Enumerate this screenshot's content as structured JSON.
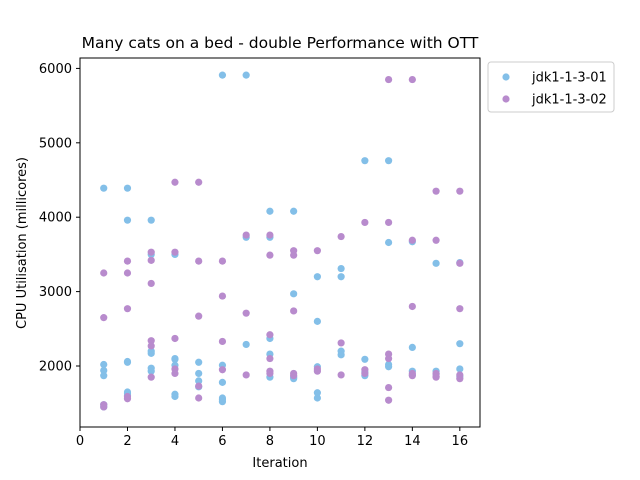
{
  "chart_data": {
    "type": "scatter",
    "title": "Many cats on a bed - double Performance with OTT",
    "xlabel": "Iteration",
    "ylabel": "CPU Utilisation (millicores)",
    "xlim": [
      0,
      16.85
    ],
    "ylim": [
      1180,
      6140
    ],
    "xticks": [
      0,
      2,
      4,
      6,
      8,
      10,
      12,
      14,
      16
    ],
    "yticks": [
      2000,
      3000,
      4000,
      5000,
      6000
    ],
    "legend_position": "upper right outside",
    "series": [
      {
        "name": "jdk1-1-3-01",
        "color": "#83bfe8",
        "points": [
          [
            1,
            4390
          ],
          [
            1,
            2020
          ],
          [
            1,
            1940
          ],
          [
            1,
            1870
          ],
          [
            1,
            1480
          ],
          [
            1,
            1450
          ],
          [
            2,
            4390
          ],
          [
            2,
            3960
          ],
          [
            2,
            2060
          ],
          [
            2,
            2050
          ],
          [
            2,
            1650
          ],
          [
            2,
            1630
          ],
          [
            2,
            1600
          ],
          [
            3,
            3960
          ],
          [
            3,
            3500
          ],
          [
            3,
            2200
          ],
          [
            3,
            2170
          ],
          [
            3,
            1970
          ],
          [
            3,
            1930
          ],
          [
            4,
            3500
          ],
          [
            4,
            2100
          ],
          [
            4,
            2090
          ],
          [
            4,
            2010
          ],
          [
            4,
            1620
          ],
          [
            4,
            1590
          ],
          [
            5,
            2050
          ],
          [
            5,
            1900
          ],
          [
            5,
            1800
          ],
          [
            5,
            1720
          ],
          [
            6,
            5910
          ],
          [
            6,
            2010
          ],
          [
            6,
            1780
          ],
          [
            6,
            1570
          ],
          [
            6,
            1550
          ],
          [
            6,
            1520
          ],
          [
            7,
            5910
          ],
          [
            7,
            3730
          ],
          [
            7,
            2290
          ],
          [
            8,
            4080
          ],
          [
            8,
            3730
          ],
          [
            8,
            2370
          ],
          [
            8,
            2160
          ],
          [
            8,
            1850
          ],
          [
            9,
            4080
          ],
          [
            9,
            2970
          ],
          [
            9,
            1850
          ],
          [
            9,
            1830
          ],
          [
            10,
            3200
          ],
          [
            10,
            2600
          ],
          [
            10,
            1990
          ],
          [
            10,
            1640
          ],
          [
            10,
            1570
          ],
          [
            11,
            3310
          ],
          [
            11,
            3200
          ],
          [
            11,
            2200
          ],
          [
            11,
            2150
          ],
          [
            12,
            4760
          ],
          [
            12,
            2090
          ],
          [
            12,
            1920
          ],
          [
            12,
            1870
          ],
          [
            13,
            4760
          ],
          [
            13,
            3660
          ],
          [
            13,
            2020
          ],
          [
            13,
            1990
          ],
          [
            14,
            3670
          ],
          [
            14,
            2250
          ],
          [
            14,
            1930
          ],
          [
            14,
            1880
          ],
          [
            15,
            3380
          ],
          [
            15,
            1930
          ],
          [
            15,
            1890
          ],
          [
            16,
            3390
          ],
          [
            16,
            2300
          ],
          [
            16,
            1960
          ],
          [
            16,
            1860
          ]
        ]
      },
      {
        "name": "jdk1-1-3-02",
        "color": "#b88bcd",
        "points": [
          [
            1,
            3250
          ],
          [
            1,
            2650
          ],
          [
            1,
            1480
          ],
          [
            1,
            1450
          ],
          [
            2,
            3410
          ],
          [
            2,
            3250
          ],
          [
            2,
            2770
          ],
          [
            2,
            1590
          ],
          [
            2,
            1560
          ],
          [
            3,
            3530
          ],
          [
            3,
            3420
          ],
          [
            3,
            3110
          ],
          [
            3,
            2340
          ],
          [
            3,
            2270
          ],
          [
            3,
            1850
          ],
          [
            4,
            4470
          ],
          [
            4,
            3530
          ],
          [
            4,
            2370
          ],
          [
            4,
            1960
          ],
          [
            4,
            1900
          ],
          [
            5,
            4470
          ],
          [
            5,
            3410
          ],
          [
            5,
            2670
          ],
          [
            5,
            1730
          ],
          [
            5,
            1570
          ],
          [
            6,
            3410
          ],
          [
            6,
            2940
          ],
          [
            6,
            2330
          ],
          [
            6,
            1950
          ],
          [
            7,
            3760
          ],
          [
            7,
            2710
          ],
          [
            7,
            1880
          ],
          [
            8,
            3760
          ],
          [
            8,
            3490
          ],
          [
            8,
            2420
          ],
          [
            8,
            2100
          ],
          [
            8,
            1930
          ],
          [
            8,
            1900
          ],
          [
            9,
            3550
          ],
          [
            9,
            3490
          ],
          [
            9,
            2740
          ],
          [
            9,
            1900
          ],
          [
            9,
            1870
          ],
          [
            10,
            3550
          ],
          [
            10,
            1960
          ],
          [
            10,
            1930
          ],
          [
            11,
            3740
          ],
          [
            11,
            2310
          ],
          [
            11,
            1880
          ],
          [
            12,
            3930
          ],
          [
            12,
            1950
          ],
          [
            12,
            1900
          ],
          [
            13,
            5850
          ],
          [
            13,
            3930
          ],
          [
            13,
            2160
          ],
          [
            13,
            2100
          ],
          [
            13,
            1710
          ],
          [
            13,
            1540
          ],
          [
            14,
            5850
          ],
          [
            14,
            3690
          ],
          [
            14,
            2800
          ],
          [
            14,
            1900
          ],
          [
            14,
            1870
          ],
          [
            15,
            4350
          ],
          [
            15,
            3690
          ],
          [
            15,
            1900
          ],
          [
            15,
            1860
          ],
          [
            15,
            1850
          ],
          [
            16,
            4350
          ],
          [
            16,
            3380
          ],
          [
            16,
            2770
          ],
          [
            16,
            1880
          ],
          [
            16,
            1830
          ]
        ]
      }
    ]
  }
}
